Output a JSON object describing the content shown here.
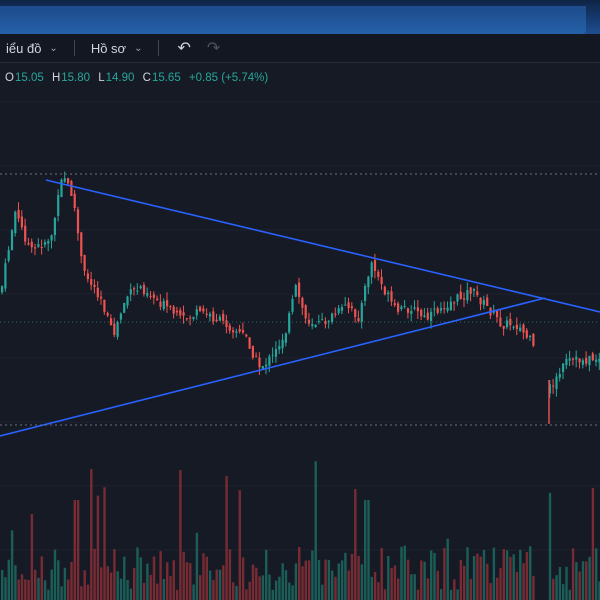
{
  "toolbar": {
    "chart_menu_label": "iểu đồ",
    "profile_menu_label": "Hồ sơ"
  },
  "ohlc": {
    "o_label": "O",
    "o_value": "15.05",
    "h_label": "H",
    "h_value": "15.80",
    "l_label": "L",
    "l_value": "14.90",
    "c_label": "C",
    "c_value": "15.65",
    "change": "+0.85 (+5.74%)"
  },
  "icons": {
    "chart_menu": "chevron-down-icon",
    "profile_menu": "chevron-down-icon",
    "undo": "undo-icon",
    "redo": "redo-icon"
  },
  "colors": {
    "background": "#161a25",
    "up": "#26a69a",
    "down": "#ef5350",
    "trendline": "#2962ff",
    "volume_up": "#1c6b62",
    "volume_down": "#8a2f35"
  }
}
